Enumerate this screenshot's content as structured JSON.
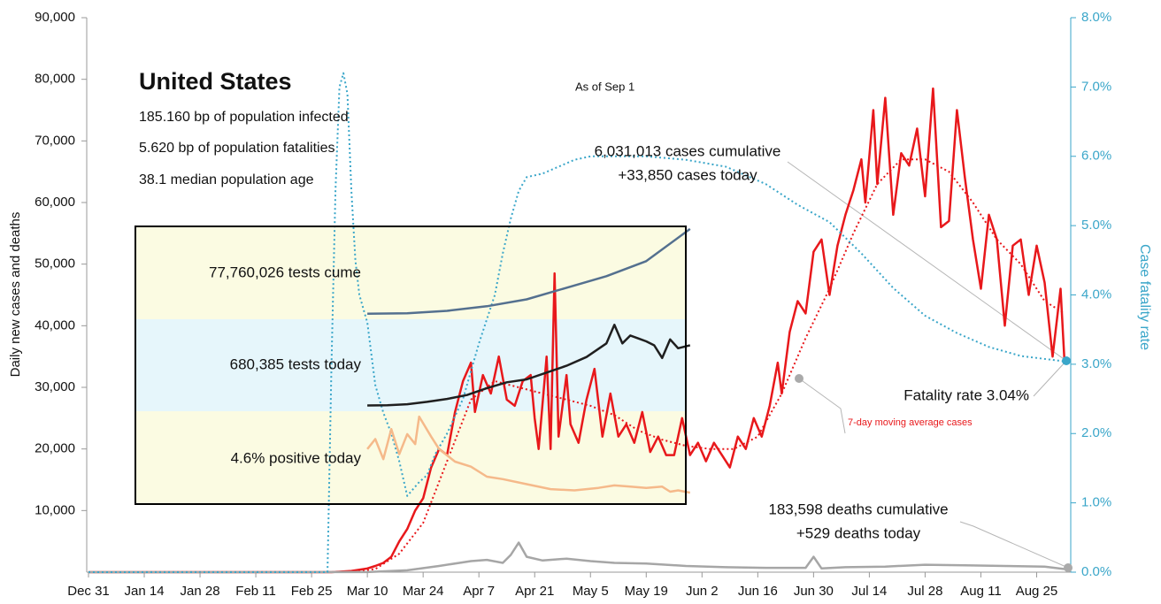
{
  "chart_data": [
    {
      "type": "line",
      "title": "United States",
      "annotations": [
        "185.160 bp of population infected",
        "5.620 bp of population fatalities",
        "38.1 median population age",
        "As of Sep 1",
        "6,031,013 cases cumulative",
        "+33,850 cases today",
        "Fatality rate 3.04%",
        "7-day moving average cases",
        "183,598 deaths cumulative",
        "+529 deaths today"
      ],
      "ylabel": "Daily new cases and deaths",
      "y2label": "Case fatality rate",
      "xlim": [
        0,
        245
      ],
      "xticks": [
        {
          "value": 0,
          "label": "Dec 31"
        },
        {
          "value": 14,
          "label": "Jan 14"
        },
        {
          "value": 28,
          "label": "Jan 28"
        },
        {
          "value": 42,
          "label": "Feb 11"
        },
        {
          "value": 56,
          "label": "Feb 25"
        },
        {
          "value": 70,
          "label": "Mar 10"
        },
        {
          "value": 84,
          "label": "Mar 24"
        },
        {
          "value": 98,
          "label": "Apr 7"
        },
        {
          "value": 112,
          "label": "Apr 21"
        },
        {
          "value": 126,
          "label": "May 5"
        },
        {
          "value": 140,
          "label": "May 19"
        },
        {
          "value": 154,
          "label": "Jun 2"
        },
        {
          "value": 168,
          "label": "Jun 16"
        },
        {
          "value": 182,
          "label": "Jun 30"
        },
        {
          "value": 196,
          "label": "Jul 14"
        },
        {
          "value": 210,
          "label": "Jul 28"
        },
        {
          "value": 224,
          "label": "Aug 11"
        },
        {
          "value": 238,
          "label": "Aug 25"
        }
      ],
      "ylim": [
        0,
        90000
      ],
      "yticks": [
        {
          "value": 10000,
          "label": "10,000"
        },
        {
          "value": 20000,
          "label": "20,000"
        },
        {
          "value": 30000,
          "label": "30,000"
        },
        {
          "value": 40000,
          "label": "40,000"
        },
        {
          "value": 50000,
          "label": "50,000"
        },
        {
          "value": 60000,
          "label": "60,000"
        },
        {
          "value": 70000,
          "label": "70,000"
        },
        {
          "value": 80000,
          "label": "80,000"
        },
        {
          "value": 90000,
          "label": "90,000"
        }
      ],
      "y2lim": [
        0,
        8
      ],
      "y2ticks": [
        {
          "value": 0,
          "label": "0.0%"
        },
        {
          "value": 1,
          "label": "1.0%"
        },
        {
          "value": 2,
          "label": "2.0%"
        },
        {
          "value": 3,
          "label": "3.0%"
        },
        {
          "value": 4,
          "label": "4.0%"
        },
        {
          "value": 5,
          "label": "5.0%"
        },
        {
          "value": 6,
          "label": "6.0%"
        },
        {
          "value": 7,
          "label": "7.0%"
        },
        {
          "value": 8,
          "label": "8.0%"
        }
      ],
      "series": [
        {
          "name": "Daily cases",
          "color": "#e8181b",
          "style": "solid",
          "x": [
            0,
            61,
            66,
            70,
            72,
            74,
            76,
            78,
            80,
            82,
            84,
            86,
            88,
            90,
            92,
            94,
            96,
            97,
            99,
            101,
            103,
            105,
            107,
            109,
            111,
            112,
            113,
            115,
            116,
            117,
            118,
            120,
            121,
            123,
            125,
            127,
            129,
            131,
            133,
            135,
            137,
            139,
            141,
            143,
            145,
            147,
            149,
            151,
            153,
            155,
            157,
            159,
            161,
            163,
            165,
            167,
            169,
            171,
            173,
            174,
            176,
            178,
            180,
            182,
            184,
            186,
            188,
            190,
            192,
            194,
            195,
            197,
            198,
            200,
            202,
            204,
            206,
            208,
            210,
            212,
            214,
            216,
            218,
            220,
            222,
            224,
            226,
            228,
            230,
            232,
            234,
            236,
            238,
            240,
            242,
            244,
            245
          ],
          "values": [
            0,
            0,
            200,
            600,
            1000,
            1500,
            2500,
            5000,
            7000,
            10000,
            12000,
            17000,
            20000,
            19000,
            26000,
            31000,
            34000,
            26000,
            32000,
            29000,
            35000,
            28000,
            27000,
            31000,
            32000,
            25000,
            20000,
            35000,
            20000,
            48500,
            22000,
            32000,
            24000,
            21000,
            28000,
            33000,
            22000,
            29000,
            22000,
            24000,
            21000,
            26000,
            19500,
            22000,
            19000,
            19000,
            25000,
            19000,
            21000,
            18000,
            21000,
            19000,
            17000,
            22000,
            20000,
            25000,
            22000,
            27000,
            34000,
            29000,
            39000,
            44000,
            42000,
            52000,
            54000,
            45000,
            53000,
            58000,
            62000,
            67000,
            60000,
            75000,
            63000,
            77000,
            58000,
            68000,
            66000,
            72000,
            61000,
            78500,
            56000,
            57000,
            75000,
            64000,
            54000,
            46000,
            58000,
            54000,
            40000,
            53000,
            54000,
            45000,
            53000,
            47000,
            35000,
            46000,
            34000
          ]
        },
        {
          "name": "7-day moving average cases",
          "color": "#e8181b",
          "style": "dotted",
          "x": [
            0,
            66,
            72,
            78,
            84,
            90,
            96,
            102,
            108,
            114,
            120,
            126,
            132,
            138,
            144,
            150,
            156,
            162,
            168,
            174,
            180,
            186,
            192,
            198,
            204,
            210,
            216,
            222,
            228,
            234,
            240,
            245
          ],
          "values": [
            0,
            50,
            500,
            3000,
            8000,
            18000,
            28000,
            31000,
            30000,
            29000,
            28000,
            27000,
            25500,
            23000,
            21500,
            20500,
            20000,
            20000,
            22000,
            29000,
            38000,
            46000,
            55000,
            63000,
            67000,
            67000,
            65000,
            60000,
            54000,
            50000,
            44000,
            42000
          ]
        },
        {
          "name": "Daily deaths",
          "color": "#a6a6a6",
          "style": "solid",
          "x": [
            0,
            70,
            80,
            88,
            96,
            100,
            104,
            106,
            108,
            110,
            114,
            120,
            126,
            132,
            140,
            150,
            160,
            170,
            180,
            182,
            184,
            190,
            200,
            210,
            220,
            230,
            240,
            245
          ],
          "values": [
            0,
            20,
            300,
            1000,
            1800,
            2000,
            1500,
            2800,
            4800,
            2500,
            1900,
            2200,
            1800,
            1500,
            1400,
            1000,
            800,
            700,
            700,
            2500,
            600,
            800,
            900,
            1200,
            1100,
            1000,
            900,
            500
          ]
        },
        {
          "name": "Case fatality rate",
          "color": "#3aa6c9",
          "style": "dotted",
          "axis": "y2",
          "x": [
            0,
            60,
            61,
            62,
            63,
            64,
            65,
            66,
            67,
            68,
            70,
            72,
            74,
            76,
            78,
            80,
            83,
            85,
            87,
            90,
            94,
            98,
            102,
            104,
            106,
            108,
            110,
            114,
            118,
            122,
            126,
            140,
            150,
            160,
            170,
            178,
            186,
            194,
            202,
            210,
            218,
            226,
            234,
            245
          ],
          "values": [
            0,
            0,
            3.0,
            5.5,
            7.0,
            7.2,
            6.9,
            5.5,
            4.5,
            4.0,
            3.6,
            2.7,
            2.3,
            2.0,
            1.6,
            1.1,
            1.3,
            1.4,
            1.7,
            2.0,
            2.5,
            3.3,
            4.0,
            4.6,
            5.1,
            5.5,
            5.7,
            5.75,
            5.85,
            5.95,
            6.0,
            6.0,
            5.95,
            5.85,
            5.6,
            5.3,
            5.05,
            4.6,
            4.1,
            3.7,
            3.45,
            3.25,
            3.12,
            3.04
          ]
        }
      ]
    },
    {
      "type": "line",
      "annotations": [
        "77,760,026 tests cume"
      ],
      "xlim": [
        0,
        245
      ],
      "ylim": [
        0,
        80000000
      ],
      "series": [
        {
          "name": "Tests cumulative",
          "color": "#54708f",
          "style": "solid",
          "x": [
            70,
            80,
            90,
            100,
            110,
            120,
            130,
            140,
            151
          ],
          "values": [
            4600000,
            5000000,
            7000000,
            11000000,
            17000000,
            27000000,
            37000000,
            50000000,
            77760026
          ]
        }
      ]
    },
    {
      "type": "line",
      "annotations": [
        "680,385 tests today"
      ],
      "xlim": [
        0,
        245
      ],
      "ylim": [
        0,
        950000
      ],
      "series": [
        {
          "name": "Tests today",
          "color": "#1f1f1f",
          "style": "solid",
          "x": [
            70,
            75,
            80,
            85,
            90,
            95,
            100,
            105,
            110,
            115,
            120,
            125,
            130,
            132,
            134,
            136,
            138,
            140,
            142,
            144,
            146,
            148,
            151
          ],
          "values": [
            63000,
            65000,
            75000,
            100000,
            130000,
            170000,
            240000,
            300000,
            330000,
            400000,
            470000,
            560000,
            700000,
            890000,
            700000,
            780000,
            750000,
            720000,
            680000,
            550000,
            740000,
            650000,
            680385
          ]
        }
      ]
    },
    {
      "type": "line",
      "annotations": [
        "4.6% positive today"
      ],
      "xlim": [
        0,
        245
      ],
      "ylim": [
        0,
        37
      ],
      "series": [
        {
          "name": "Positive rate",
          "color": "#f5b98a",
          "style": "solid",
          "x": [
            70,
            72,
            74,
            76,
            78,
            80,
            82,
            83,
            86,
            88,
            92,
            96,
            100,
            104,
            110,
            116,
            122,
            128,
            132,
            136,
            140,
            144,
            146,
            148,
            151
          ],
          "values": [
            22,
            26,
            18,
            30,
            20,
            28,
            24,
            35,
            27,
            22,
            17,
            15,
            11,
            10,
            8,
            6,
            5.5,
            6.5,
            7.5,
            7,
            6.5,
            7,
            5,
            5.5,
            4.6
          ]
        }
      ]
    }
  ]
}
